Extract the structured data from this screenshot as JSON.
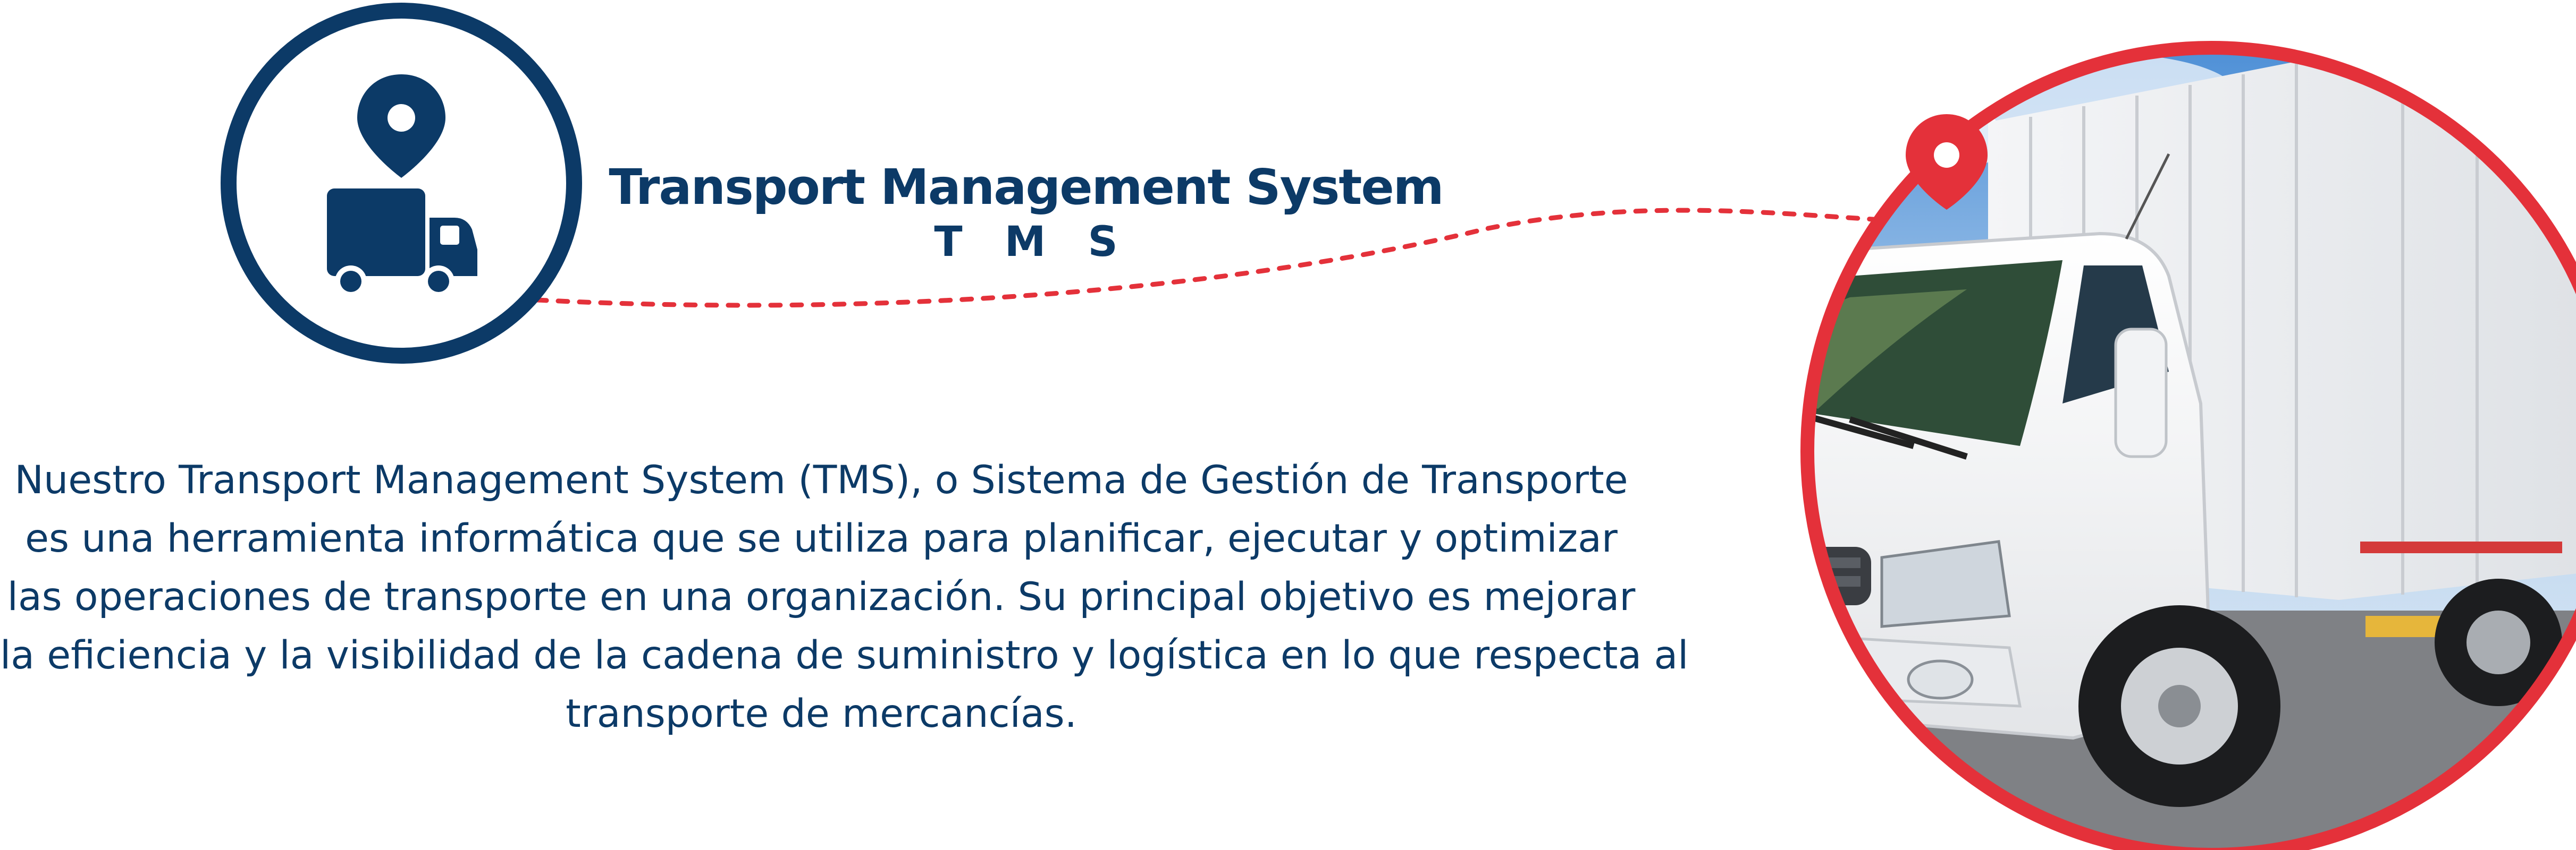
{
  "heading": {
    "title": "Transport Management System",
    "acronym": "T M S"
  },
  "description": {
    "lines": [
      "Nuestro Transport Management System (TMS), o Sistema de Gestión de Transporte",
      "es una herramienta informática que se utiliza para planificar, ejecutar  y optimizar",
      "las operaciones de transporte en una organización. Su principal objetivo es mejorar",
      "la eficiencia y la visibilidad de la cadena de suministro y logística en lo que  respecta al",
      "transporte de mercancías."
    ]
  },
  "icons": {
    "left_badge": "truck-location-icon",
    "right_pin": "map-pin-icon"
  },
  "colors": {
    "navy": "#0c3a67",
    "red": "#e4313a"
  }
}
